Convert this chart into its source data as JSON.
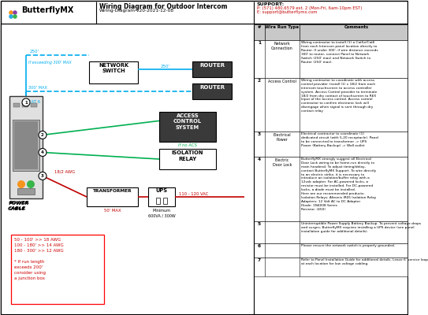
{
  "title": "Wiring Diagram for Outdoor Intercom",
  "subtitle": "Wiring-Diagram-v20-2021-12-08",
  "logo_text": "ButterflyMX",
  "support_text": "SUPPORT:",
  "support_phone": "P: (571) 480.6579 ext. 2 (Mon-Fri, 6am-10pm EST)",
  "support_email": "E: support@butterflymx.com",
  "bg_color": "#ffffff",
  "cyan": "#00adef",
  "green": "#00b050",
  "red_wire": "#c00000",
  "red_box": "#ff0000",
  "table_rows": [
    {
      "num": "1",
      "type": "Network\nConnection",
      "comment": "Wiring contractor to install (1) a Cat5e/Cat6\nfrom each Intercom panel location directly to\nRouter. If under 300', if wire distance exceeds\n300' to router, connect Panel to Network\nSwitch (250' max) and Network Switch to\nRouter (250' max)."
    },
    {
      "num": "2",
      "type": "Access Control",
      "comment": "Wiring contractor to coordinate with access\ncontrol provider. Install (1) x 18/2 from each\nintercom touchscreen to access controller\nsystem. Access Control provider to terminate\n18/2 from dry contact of touchscreen to REX\nInput of the access control. Access control\ncontractor to confirm electronic lock will\ndisengage when signal is sent through dry\ncontact relay."
    },
    {
      "num": "3",
      "type": "Electrical\nPower",
      "comment": "Electrical contractor to coordinate (1)\ndedicated circuit (with 5-20 receptacle). Panel\nto be connected to transformer -> UPS\nPower (Battery Backup) -> Wall outlet"
    },
    {
      "num": "4",
      "type": "Electric\nDoor Lock",
      "comment": "ButterflyMX strongly suggest all Electrical\nDoor Lock wiring to be home-run directly to\nmain headend. To adjust timing/delay,\ncontact ButterflyMX Support. To wire directly\nto an electric strike, it is necessary to\nintroduce an isolation/buffer relay with a\n12vdc adapter. For AC-powered locks, a\nresistor must be installed. For DC-powered\nlocks, a diode must be installed.\nHere are our recommended products:\nIsolation Relays: Altronix IR05 Isolation Relay\nAdapters: 12 Volt AC to DC Adapter\nDiode: 1N4008 Series\nResistor: (450)"
    },
    {
      "num": "5",
      "type": "",
      "comment": "Uninterruptible Power Supply Battery Backup. To prevent voltage drops\nand surges, ButterflyMX requires installing a UPS device (see panel\ninstallation guide for additional details)."
    },
    {
      "num": "6",
      "type": "",
      "comment": "Please ensure the network switch is properly grounded."
    },
    {
      "num": "7",
      "type": "",
      "comment": "Refer to Panel Installation Guide for additional details. Leave 6' service loop\nat each location for low voltage cabling."
    }
  ]
}
